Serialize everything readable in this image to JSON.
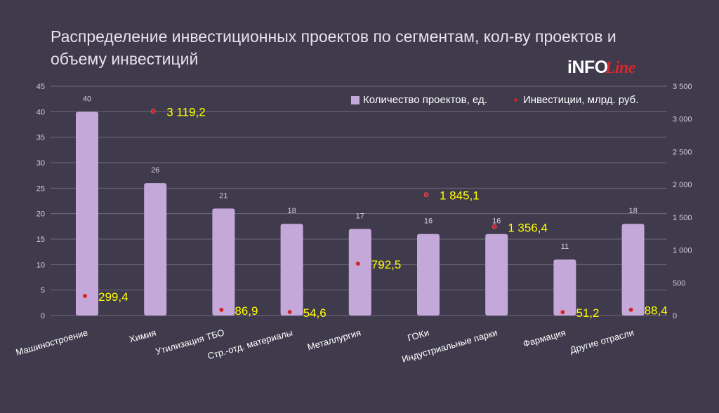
{
  "header": {
    "title": "Распределение инвестиционных проектов по сегментам, кол-ву проектов и объему инвестиций"
  },
  "logo": {
    "text_main": "iNFO",
    "text_accent": "Line"
  },
  "colors": {
    "background": "#3f3a4c",
    "bars": "#c5a8da",
    "markers": "#c0262f",
    "investment_labels": "#ffff00",
    "count_labels": "#d4d1da"
  },
  "chart_data": {
    "type": "bar",
    "categories": [
      "Машиностроение",
      "Химия",
      "Утилизация ТБО",
      "Стр.-отд. материалы",
      "Металлургия",
      "ГОКи",
      "Индустриальные парки",
      "Фармация",
      "Другие отрасли"
    ],
    "series": [
      {
        "name": "Количество проектов, ед.",
        "type": "bar",
        "axis": "left",
        "values": [
          40,
          26,
          21,
          18,
          17,
          16,
          16,
          11,
          18
        ]
      },
      {
        "name": "Инвестиции, млрд. руб.",
        "type": "scatter",
        "axis": "right",
        "values": [
          299.4,
          3119.2,
          86.9,
          54.6,
          792.5,
          1845.1,
          1356.4,
          51.2,
          88.4
        ]
      }
    ],
    "count_labels": [
      "40",
      "26",
      "21",
      "18",
      "17",
      "16",
      "16",
      "11",
      "18"
    ],
    "investment_labels": [
      "299,4",
      "3 119,2",
      "86,9",
      "54,6",
      "792,5",
      "1 845,1",
      "1 356,4",
      "51,2",
      "88,4"
    ],
    "y_left": {
      "ylim": [
        0,
        45
      ],
      "ticks": [
        "0",
        "5",
        "10",
        "15",
        "20",
        "25",
        "30",
        "35",
        "40",
        "45"
      ]
    },
    "y_right": {
      "ylim": [
        0,
        3500
      ],
      "ticks": [
        "0",
        "500",
        "1 000",
        "1 500",
        "2 000",
        "2 500",
        "3 000",
        "3 500"
      ]
    },
    "grid": true,
    "legend_position": "top-right"
  }
}
